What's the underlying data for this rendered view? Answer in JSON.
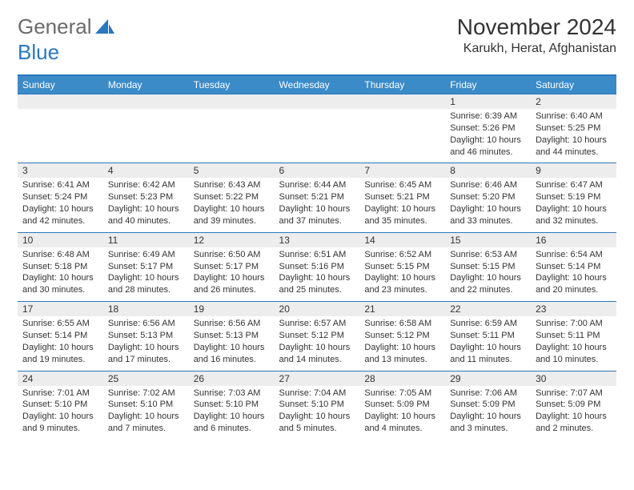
{
  "brand": {
    "part1": "General",
    "part2": "Blue"
  },
  "title": {
    "month": "November 2024",
    "location": "Karukh, Herat, Afghanistan"
  },
  "colors": {
    "headerBlue": "#3b8bc9",
    "accentBlue": "#2a78bd",
    "dayBg": "#ededed",
    "text": "#333333",
    "logoGray": "#6b6b6b",
    "background": "#ffffff"
  },
  "weekdays": [
    "Sunday",
    "Monday",
    "Tuesday",
    "Wednesday",
    "Thursday",
    "Friday",
    "Saturday"
  ],
  "grid": [
    [
      {
        "empty": true
      },
      {
        "empty": true
      },
      {
        "empty": true
      },
      {
        "empty": true
      },
      {
        "empty": true
      },
      {
        "n": "1",
        "sr": "6:39 AM",
        "ss": "5:26 PM",
        "dl": "10 hours and 46 minutes."
      },
      {
        "n": "2",
        "sr": "6:40 AM",
        "ss": "5:25 PM",
        "dl": "10 hours and 44 minutes."
      }
    ],
    [
      {
        "n": "3",
        "sr": "6:41 AM",
        "ss": "5:24 PM",
        "dl": "10 hours and 42 minutes."
      },
      {
        "n": "4",
        "sr": "6:42 AM",
        "ss": "5:23 PM",
        "dl": "10 hours and 40 minutes."
      },
      {
        "n": "5",
        "sr": "6:43 AM",
        "ss": "5:22 PM",
        "dl": "10 hours and 39 minutes."
      },
      {
        "n": "6",
        "sr": "6:44 AM",
        "ss": "5:21 PM",
        "dl": "10 hours and 37 minutes."
      },
      {
        "n": "7",
        "sr": "6:45 AM",
        "ss": "5:21 PM",
        "dl": "10 hours and 35 minutes."
      },
      {
        "n": "8",
        "sr": "6:46 AM",
        "ss": "5:20 PM",
        "dl": "10 hours and 33 minutes."
      },
      {
        "n": "9",
        "sr": "6:47 AM",
        "ss": "5:19 PM",
        "dl": "10 hours and 32 minutes."
      }
    ],
    [
      {
        "n": "10",
        "sr": "6:48 AM",
        "ss": "5:18 PM",
        "dl": "10 hours and 30 minutes."
      },
      {
        "n": "11",
        "sr": "6:49 AM",
        "ss": "5:17 PM",
        "dl": "10 hours and 28 minutes."
      },
      {
        "n": "12",
        "sr": "6:50 AM",
        "ss": "5:17 PM",
        "dl": "10 hours and 26 minutes."
      },
      {
        "n": "13",
        "sr": "6:51 AM",
        "ss": "5:16 PM",
        "dl": "10 hours and 25 minutes."
      },
      {
        "n": "14",
        "sr": "6:52 AM",
        "ss": "5:15 PM",
        "dl": "10 hours and 23 minutes."
      },
      {
        "n": "15",
        "sr": "6:53 AM",
        "ss": "5:15 PM",
        "dl": "10 hours and 22 minutes."
      },
      {
        "n": "16",
        "sr": "6:54 AM",
        "ss": "5:14 PM",
        "dl": "10 hours and 20 minutes."
      }
    ],
    [
      {
        "n": "17",
        "sr": "6:55 AM",
        "ss": "5:14 PM",
        "dl": "10 hours and 19 minutes."
      },
      {
        "n": "18",
        "sr": "6:56 AM",
        "ss": "5:13 PM",
        "dl": "10 hours and 17 minutes."
      },
      {
        "n": "19",
        "sr": "6:56 AM",
        "ss": "5:13 PM",
        "dl": "10 hours and 16 minutes."
      },
      {
        "n": "20",
        "sr": "6:57 AM",
        "ss": "5:12 PM",
        "dl": "10 hours and 14 minutes."
      },
      {
        "n": "21",
        "sr": "6:58 AM",
        "ss": "5:12 PM",
        "dl": "10 hours and 13 minutes."
      },
      {
        "n": "22",
        "sr": "6:59 AM",
        "ss": "5:11 PM",
        "dl": "10 hours and 11 minutes."
      },
      {
        "n": "23",
        "sr": "7:00 AM",
        "ss": "5:11 PM",
        "dl": "10 hours and 10 minutes."
      }
    ],
    [
      {
        "n": "24",
        "sr": "7:01 AM",
        "ss": "5:10 PM",
        "dl": "10 hours and 9 minutes."
      },
      {
        "n": "25",
        "sr": "7:02 AM",
        "ss": "5:10 PM",
        "dl": "10 hours and 7 minutes."
      },
      {
        "n": "26",
        "sr": "7:03 AM",
        "ss": "5:10 PM",
        "dl": "10 hours and 6 minutes."
      },
      {
        "n": "27",
        "sr": "7:04 AM",
        "ss": "5:10 PM",
        "dl": "10 hours and 5 minutes."
      },
      {
        "n": "28",
        "sr": "7:05 AM",
        "ss": "5:09 PM",
        "dl": "10 hours and 4 minutes."
      },
      {
        "n": "29",
        "sr": "7:06 AM",
        "ss": "5:09 PM",
        "dl": "10 hours and 3 minutes."
      },
      {
        "n": "30",
        "sr": "7:07 AM",
        "ss": "5:09 PM",
        "dl": "10 hours and 2 minutes."
      }
    ]
  ],
  "labels": {
    "sunrise": "Sunrise: ",
    "sunset": "Sunset: ",
    "daylight": "Daylight: "
  }
}
